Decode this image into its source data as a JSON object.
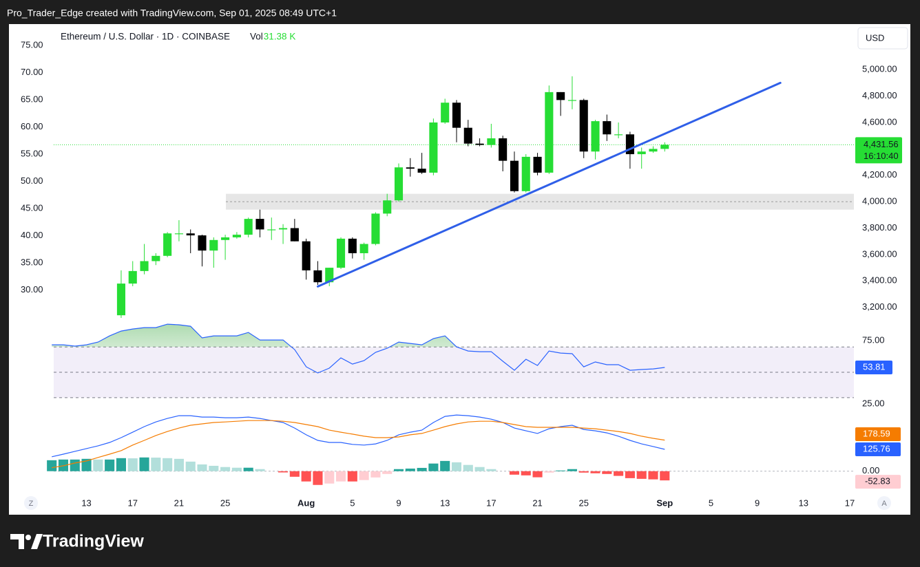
{
  "header": {
    "attribution": "Pro_Trader_Edge created with TradingView.com, Sep 01, 2025 08:49 UTC+1",
    "logo": "TradingView"
  },
  "legend": {
    "symbol": "Ethereum / U.S. Dollar · 1D · COINBASE",
    "vol_label": "Vol",
    "vol_value": "31.38 K"
  },
  "buttons": {
    "currency": "USD",
    "left": "Z",
    "right": "A"
  },
  "x_axis": {
    "xlim": [
      "2025-07-06",
      "2025-09-17"
    ],
    "xticks": [
      {
        "value": "2025-07-13",
        "label": "13"
      },
      {
        "value": "2025-07-17",
        "label": "17"
      },
      {
        "value": "2025-07-21",
        "label": "21"
      },
      {
        "value": "2025-07-25",
        "label": "25"
      },
      {
        "value": "2025-08-01",
        "label": "Aug"
      },
      {
        "value": "2025-08-05",
        "label": "5"
      },
      {
        "value": "2025-08-09",
        "label": "9"
      },
      {
        "value": "2025-08-13",
        "label": "13"
      },
      {
        "value": "2025-08-17",
        "label": "17"
      },
      {
        "value": "2025-08-21",
        "label": "21"
      },
      {
        "value": "2025-08-25",
        "label": "25"
      },
      {
        "value": "2025-09-01",
        "label": "Sep"
      },
      {
        "value": "2025-09-05",
        "label": "5"
      },
      {
        "value": "2025-09-09",
        "label": "9"
      },
      {
        "value": "2025-09-13",
        "label": "13"
      },
      {
        "value": "2025-09-17",
        "label": "17"
      }
    ]
  },
  "chart_data": [
    {
      "type": "candlestick",
      "x": [
        "2025-07-16",
        "2025-07-17",
        "2025-07-18",
        "2025-07-19",
        "2025-07-20",
        "2025-07-21",
        "2025-07-22",
        "2025-07-23",
        "2025-07-24",
        "2025-07-25",
        "2025-07-26",
        "2025-07-27",
        "2025-07-28",
        "2025-07-29",
        "2025-07-30",
        "2025-07-31",
        "2025-08-01",
        "2025-08-02",
        "2025-08-03",
        "2025-08-04",
        "2025-08-05",
        "2025-08-06",
        "2025-08-07",
        "2025-08-08",
        "2025-08-09",
        "2025-08-10",
        "2025-08-11",
        "2025-08-12",
        "2025-08-13",
        "2025-08-14",
        "2025-08-15",
        "2025-08-16",
        "2025-08-17",
        "2025-08-18",
        "2025-08-19",
        "2025-08-20",
        "2025-08-21",
        "2025-08-22",
        "2025-08-23",
        "2025-08-24",
        "2025-08-25",
        "2025-08-26",
        "2025-08-27",
        "2025-08-28",
        "2025-08-29",
        "2025-08-30",
        "2025-08-31",
        "2025-09-01"
      ],
      "open": [
        3140,
        3380,
        3475,
        3550,
        3590,
        3760,
        3760,
        3745,
        3630,
        3710,
        3730,
        3750,
        3870,
        3790,
        3790,
        3800,
        3700,
        3480,
        3390,
        3500,
        3720,
        3610,
        3680,
        3910,
        4010,
        4260,
        4250,
        4220,
        4600,
        4750,
        4560,
        4440,
        4430,
        4480,
        4310,
        4080,
        4340,
        4220,
        4830,
        4770,
        4770,
        4380,
        4610,
        4510,
        4510,
        4360,
        4380,
        4400
      ],
      "high": [
        3480,
        3550,
        3680,
        3610,
        3770,
        3860,
        3790,
        3750,
        3730,
        3750,
        3770,
        3880,
        3940,
        3880,
        3830,
        3870,
        3720,
        3550,
        3500,
        3730,
        3730,
        3690,
        3920,
        4060,
        4290,
        4330,
        4370,
        4630,
        4780,
        4770,
        4620,
        4480,
        4590,
        4500,
        4380,
        4360,
        4370,
        4880,
        4830,
        4950,
        4780,
        4620,
        4660,
        4600,
        4530,
        4410,
        4420,
        4450
      ],
      "low": [
        3110,
        3360,
        3450,
        3520,
        3580,
        3700,
        3610,
        3510,
        3500,
        3560,
        3720,
        3730,
        3730,
        3710,
        3680,
        3700,
        3410,
        3370,
        3360,
        3490,
        3570,
        3560,
        3670,
        3890,
        4000,
        4190,
        4210,
        4200,
        4590,
        4450,
        4420,
        4420,
        4410,
        4230,
        4070,
        4070,
        4200,
        4210,
        4650,
        4700,
        4330,
        4320,
        4460,
        4480,
        4250,
        4250,
        4370,
        4380
      ],
      "close": [
        3380,
        3475,
        3550,
        3590,
        3760,
        3760,
        3745,
        3630,
        3710,
        3730,
        3750,
        3870,
        3790,
        3790,
        3800,
        3700,
        3480,
        3390,
        3500,
        3720,
        3610,
        3680,
        3910,
        4010,
        4260,
        4250,
        4220,
        4600,
        4750,
        4560,
        4440,
        4430,
        4480,
        4310,
        4080,
        4340,
        4220,
        4830,
        4770,
        4770,
        4380,
        4610,
        4510,
        4510,
        4360,
        4380,
        4400,
        4431.56
      ],
      "up_color": "#26dd34",
      "down_color": "#000000",
      "ylim": [
        3120,
        5340
      ],
      "yticks": [
        {
          "value": 5000,
          "label": "5,000.00"
        },
        {
          "value": 4800,
          "label": "4,800.00"
        },
        {
          "value": 4600,
          "label": "4,600.00"
        },
        {
          "value": 4200,
          "label": "4,200.00"
        },
        {
          "value": 4000,
          "label": "4,000.00"
        },
        {
          "value": 3800,
          "label": "3,800.00"
        },
        {
          "value": 3600,
          "label": "3,600.00"
        },
        {
          "value": 3400,
          "label": "3,400.00"
        },
        {
          "value": 3200,
          "label": "3,200.00"
        }
      ],
      "left_ylim": [
        24.9,
        78.8
      ],
      "left_yticks": [
        {
          "value": 75,
          "label": "75.00"
        },
        {
          "value": 70,
          "label": "70.00"
        },
        {
          "value": 65,
          "label": "65.00"
        },
        {
          "value": 60,
          "label": "60.00"
        },
        {
          "value": 55,
          "label": "55.00"
        },
        {
          "value": 50,
          "label": "50.00"
        },
        {
          "value": 45,
          "label": "45.00"
        },
        {
          "value": 40,
          "label": "40.00"
        },
        {
          "value": 35,
          "label": "35.00"
        },
        {
          "value": 30,
          "label": "30.00"
        }
      ],
      "last_price": {
        "value": 4431.56,
        "label": "4,431.56",
        "countdown": "16:10:40",
        "color": "#26dd34"
      },
      "zone": {
        "from": 3940,
        "to": 4060,
        "level": 4000,
        "color": "#e6e6e6"
      },
      "trendline": {
        "x": [
          "2025-08-02",
          "2025-09-11"
        ],
        "values": [
          3358,
          4900
        ],
        "color": "#2f5fe8"
      }
    },
    {
      "type": "line",
      "x": [
        "2025-07-10",
        "2025-07-11",
        "2025-07-12",
        "2025-07-13",
        "2025-07-14",
        "2025-07-15",
        "2025-07-16",
        "2025-07-17",
        "2025-07-18",
        "2025-07-19",
        "2025-07-20",
        "2025-07-21",
        "2025-07-22",
        "2025-07-23",
        "2025-07-24",
        "2025-07-25",
        "2025-07-26",
        "2025-07-27",
        "2025-07-28",
        "2025-07-29",
        "2025-07-30",
        "2025-07-31",
        "2025-08-01",
        "2025-08-02",
        "2025-08-03",
        "2025-08-04",
        "2025-08-05",
        "2025-08-06",
        "2025-08-07",
        "2025-08-08",
        "2025-08-09",
        "2025-08-10",
        "2025-08-11",
        "2025-08-12",
        "2025-08-13",
        "2025-08-14",
        "2025-08-15",
        "2025-08-16",
        "2025-08-17",
        "2025-08-18",
        "2025-08-19",
        "2025-08-20",
        "2025-08-21",
        "2025-08-22",
        "2025-08-23",
        "2025-08-24",
        "2025-08-25",
        "2025-08-26",
        "2025-08-27",
        "2025-08-28",
        "2025-08-29",
        "2025-08-30",
        "2025-08-31",
        "2025-09-01"
      ],
      "series": [
        {
          "color": "#2962ff",
          "values": [
            71.7,
            71.7,
            70.7,
            71.7,
            73.9,
            78.8,
            82.6,
            84.2,
            85.3,
            85.3,
            88,
            87.5,
            86.4,
            77.2,
            78.8,
            78.8,
            78.8,
            81.5,
            75.5,
            75.5,
            75.5,
            67.9,
            54.3,
            49.5,
            53.3,
            61.4,
            56.5,
            59.2,
            65.8,
            69,
            73.9,
            72.8,
            71.7,
            76.6,
            78.8,
            70.1,
            66.8,
            66.3,
            66.3,
            58.7,
            51.6,
            60.3,
            55.4,
            66.8,
            65.2,
            64.7,
            54.3,
            58.2,
            56,
            56,
            51.6,
            52.2,
            52.7,
            53.81
          ]
        }
      ],
      "ylim": [
        23.4,
        89.7
      ],
      "yticks": [
        {
          "value": 75,
          "label": "75.00"
        },
        {
          "value": 25,
          "label": "25.00"
        }
      ],
      "levels": [
        70,
        50,
        30
      ],
      "band_color": "#7e57c2",
      "overbought_color": "#4caf50"
    },
    {
      "type": "combo",
      "x": [
        "2025-07-10",
        "2025-07-11",
        "2025-07-12",
        "2025-07-13",
        "2025-07-14",
        "2025-07-15",
        "2025-07-16",
        "2025-07-17",
        "2025-07-18",
        "2025-07-19",
        "2025-07-20",
        "2025-07-21",
        "2025-07-22",
        "2025-07-23",
        "2025-07-24",
        "2025-07-25",
        "2025-07-26",
        "2025-07-27",
        "2025-07-28",
        "2025-07-29",
        "2025-07-30",
        "2025-07-31",
        "2025-08-01",
        "2025-08-02",
        "2025-08-03",
        "2025-08-04",
        "2025-08-05",
        "2025-08-06",
        "2025-08-07",
        "2025-08-08",
        "2025-08-09",
        "2025-08-10",
        "2025-08-11",
        "2025-08-12",
        "2025-08-13",
        "2025-08-14",
        "2025-08-15",
        "2025-08-16",
        "2025-08-17",
        "2025-08-18",
        "2025-08-19",
        "2025-08-20",
        "2025-08-21",
        "2025-08-22",
        "2025-08-23",
        "2025-08-24",
        "2025-08-25",
        "2025-08-26",
        "2025-08-27",
        "2025-08-28",
        "2025-08-29",
        "2025-08-30",
        "2025-08-31",
        "2025-09-01"
      ],
      "histogram": {
        "colors": [
          "#26a69a",
          "#b2dfdb",
          "#ff5252",
          "#ffcdd2"
        ],
        "values": [
          63,
          67,
          67,
          71,
          67,
          67,
          75,
          74,
          79,
          78,
          75,
          71,
          55,
          39,
          31,
          24,
          20,
          20,
          12,
          0,
          -7,
          -32,
          -59,
          -79,
          -71,
          -59,
          -59,
          -51,
          -36,
          -16,
          12,
          15,
          19,
          44,
          59,
          51,
          36,
          24,
          12,
          0,
          -20,
          -24,
          -35,
          -8,
          4,
          12,
          -8,
          -12,
          -16,
          -27,
          -40,
          -44,
          -47,
          -52.83
        ]
      },
      "series": [
        {
          "color": "#2962ff",
          "values": [
            83,
            98,
            114,
            130,
            146,
            165,
            193,
            224,
            256,
            283,
            303,
            319,
            319,
            311,
            311,
            307,
            307,
            311,
            303,
            291,
            280,
            248,
            209,
            177,
            165,
            165,
            154,
            150,
            157,
            177,
            209,
            224,
            236,
            280,
            315,
            323,
            319,
            311,
            299,
            280,
            248,
            232,
            217,
            244,
            256,
            264,
            240,
            232,
            220,
            201,
            177,
            157,
            142,
            125.76
          ]
        },
        {
          "color": "#f57c00",
          "values": [
            20,
            31,
            47,
            59,
            79,
            98,
            118,
            150,
            177,
            205,
            228,
            248,
            264,
            272,
            280,
            283,
            287,
            291,
            291,
            291,
            287,
            280,
            268,
            256,
            236,
            224,
            213,
            201,
            193,
            193,
            197,
            209,
            217,
            236,
            256,
            272,
            283,
            287,
            287,
            280,
            268,
            256,
            252,
            252,
            252,
            252,
            248,
            244,
            236,
            228,
            217,
            201,
            189,
            178.59
          ]
        }
      ],
      "ylim": [
        -80,
        355
      ],
      "yticks": [
        {
          "value": 0,
          "label": "0.00"
        }
      ]
    }
  ]
}
